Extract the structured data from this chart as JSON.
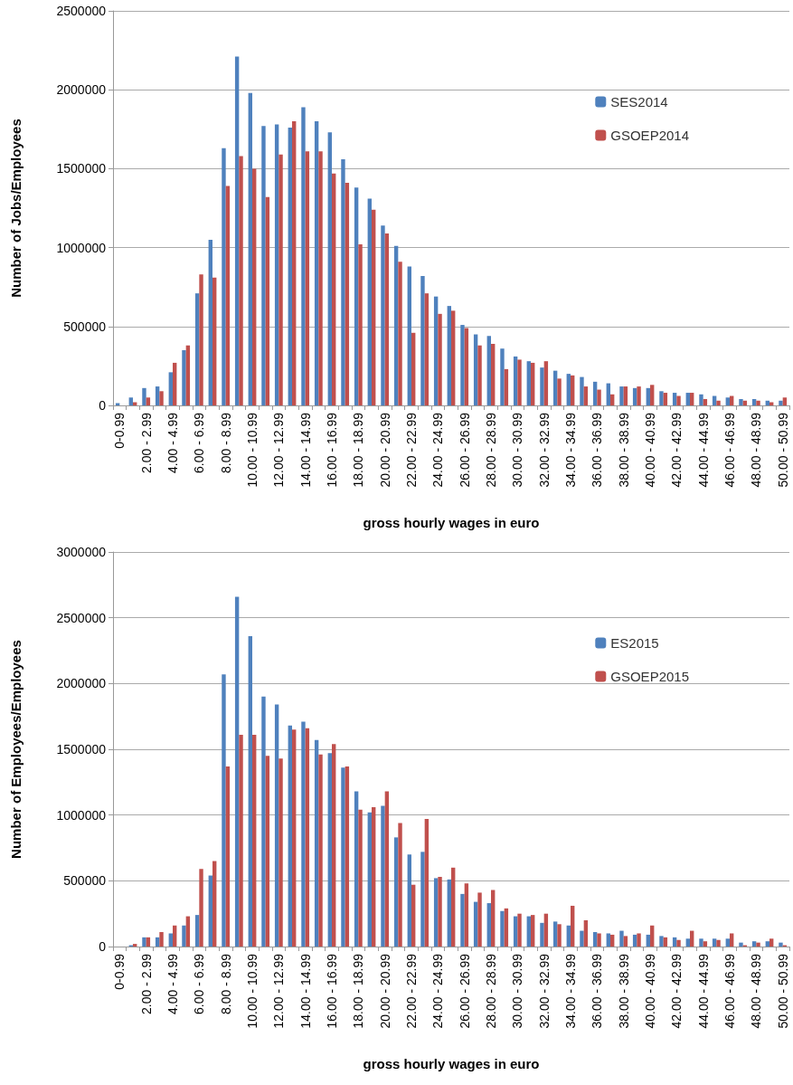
{
  "chart_data": [
    {
      "type": "bar",
      "xlabel": "gross hourly wages in euro",
      "ylabel": "Number of Jobs/Employees",
      "categories": [
        "0-0.99",
        null,
        "2.00 - 2.99",
        null,
        "4.00 - 4.99",
        null,
        "6.00 - 6.99",
        null,
        "8.00 - 8.99",
        null,
        "10.00 - 10.99",
        null,
        "12.00 - 12.99",
        null,
        "14.00 - 14.99",
        null,
        "16.00 - 16.99",
        null,
        "18.00 - 18.99",
        null,
        "20.00 - 20.99",
        null,
        "22.00 - 22.99",
        null,
        "24.00 - 24.99",
        null,
        "26.00 - 26.99",
        null,
        "28.00 - 28.99",
        null,
        "30.00 - 30.99",
        null,
        "32.00 - 32.99",
        null,
        "34.00 - 34.99",
        null,
        "36.00 - 36.99",
        null,
        "38.00 - 38.99",
        null,
        "40.00 - 40.99",
        null,
        "42.00 - 42.99",
        null,
        "44.00 - 44.99",
        null,
        "46.00 - 46.99",
        null,
        "48.00 - 48.99",
        null,
        "50.00 - 50.99"
      ],
      "series": [
        {
          "name": "SES2014",
          "color": "#4f81bd",
          "values": [
            15000,
            50000,
            110000,
            120000,
            210000,
            350000,
            710000,
            1050000,
            1630000,
            2210000,
            1980000,
            1770000,
            1780000,
            1760000,
            1890000,
            1800000,
            1730000,
            1560000,
            1380000,
            1310000,
            1140000,
            1010000,
            880000,
            820000,
            690000,
            630000,
            510000,
            450000,
            440000,
            360000,
            310000,
            280000,
            240000,
            220000,
            200000,
            180000,
            150000,
            140000,
            120000,
            110000,
            110000,
            90000,
            80000,
            80000,
            70000,
            60000,
            50000,
            40000,
            40000,
            30000,
            30000
          ]
        },
        {
          "name": "GSOEP2014",
          "color": "#c0504d",
          "values": [
            0,
            20000,
            50000,
            90000,
            270000,
            380000,
            830000,
            810000,
            1390000,
            1580000,
            1500000,
            1320000,
            1590000,
            1800000,
            1610000,
            1610000,
            1470000,
            1410000,
            1020000,
            1240000,
            1090000,
            910000,
            460000,
            710000,
            580000,
            600000,
            490000,
            380000,
            390000,
            230000,
            290000,
            270000,
            280000,
            170000,
            190000,
            120000,
            100000,
            70000,
            120000,
            120000,
            130000,
            80000,
            60000,
            80000,
            40000,
            30000,
            60000,
            30000,
            30000,
            20000,
            50000
          ]
        }
      ],
      "ylim": [
        0,
        2500000
      ],
      "yticks": [
        0,
        500000,
        1000000,
        1500000,
        2000000,
        2500000
      ],
      "grid": "y",
      "legend": "top right"
    },
    {
      "type": "bar",
      "xlabel": "gross hourly wages in euro",
      "ylabel": "Number of Employees/Employees",
      "categories": [
        "0-0.99",
        null,
        "2.00 - 2.99",
        null,
        "4.00 - 4.99",
        null,
        "6.00 - 6.99",
        null,
        "8.00 - 8.99",
        null,
        "10.00 - 10.99",
        null,
        "12.00 - 12.99",
        null,
        "14.00 - 14.99",
        null,
        "16.00 - 16.99",
        null,
        "18.00 - 18.99",
        null,
        "20.00 - 20.99",
        null,
        "22.00 - 22.99",
        null,
        "24.00 - 24.99",
        null,
        "26.00 - 26.99",
        null,
        "28.00 - 28.99",
        null,
        "30.00 - 30.99",
        null,
        "32.00 - 32.99",
        null,
        "34.00 - 34.99",
        null,
        "36.00 - 36.99",
        null,
        "38.00 - 38.99",
        null,
        "40.00 - 40.99",
        null,
        "42.00 - 42.99",
        null,
        "44.00 - 44.99",
        null,
        "46.00 - 46.99",
        null,
        "48.00 - 48.99",
        null,
        "50.00 - 50.99"
      ],
      "series": [
        {
          "name": "ES2015",
          "color": "#4f81bd",
          "values": [
            0,
            10000,
            70000,
            70000,
            100000,
            160000,
            240000,
            540000,
            2070000,
            2660000,
            2360000,
            1900000,
            1840000,
            1680000,
            1710000,
            1570000,
            1470000,
            1360000,
            1180000,
            1020000,
            1070000,
            830000,
            700000,
            720000,
            520000,
            510000,
            400000,
            340000,
            330000,
            270000,
            230000,
            230000,
            180000,
            190000,
            160000,
            120000,
            110000,
            100000,
            120000,
            90000,
            90000,
            80000,
            70000,
            60000,
            60000,
            60000,
            60000,
            30000,
            40000,
            40000,
            30000
          ]
        },
        {
          "name": "GSOEP2015",
          "color": "#c0504d",
          "values": [
            0,
            20000,
            70000,
            110000,
            160000,
            230000,
            590000,
            650000,
            1370000,
            1610000,
            1610000,
            1450000,
            1430000,
            1650000,
            1660000,
            1460000,
            1540000,
            1370000,
            1040000,
            1060000,
            1180000,
            940000,
            470000,
            970000,
            530000,
            600000,
            480000,
            410000,
            430000,
            290000,
            250000,
            240000,
            250000,
            170000,
            310000,
            200000,
            100000,
            90000,
            80000,
            100000,
            160000,
            70000,
            50000,
            120000,
            40000,
            50000,
            100000,
            10000,
            30000,
            60000,
            10000
          ]
        }
      ],
      "ylim": [
        0,
        3000000
      ],
      "yticks": [
        0,
        500000,
        1000000,
        1500000,
        2000000,
        2500000,
        3000000
      ],
      "grid": "y",
      "legend": "top right"
    }
  ]
}
